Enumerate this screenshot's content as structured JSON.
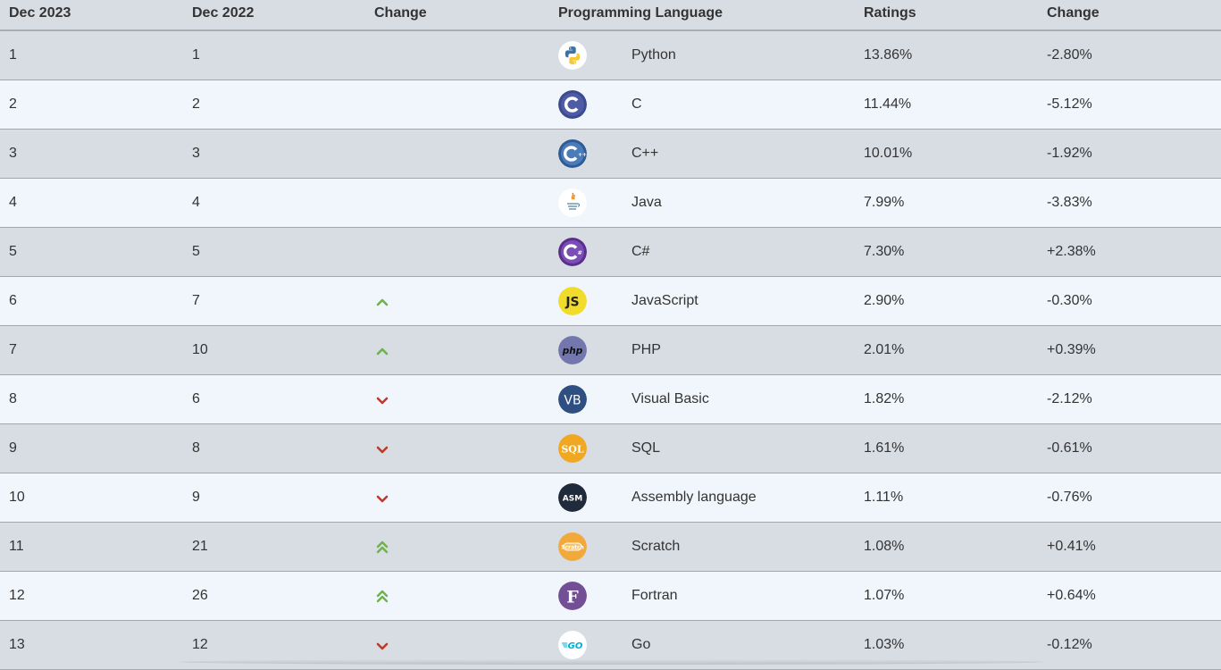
{
  "header": {
    "col1": "Dec 2023",
    "col2": "Dec 2022",
    "col3": "Change",
    "col4": "Programming Language",
    "col5": "Ratings",
    "col6": "Change"
  },
  "colors": {
    "up": "#6fb24a",
    "down": "#c0392b",
    "row_odd": "#d8dce3",
    "row_even": "#f0f6fb"
  },
  "rows": [
    {
      "rank_2023": "1",
      "rank_2022": "1",
      "trend": "none",
      "icon": "python-icon",
      "language": "Python",
      "rating": "13.86%",
      "change": "-2.80%"
    },
    {
      "rank_2023": "2",
      "rank_2022": "2",
      "trend": "none",
      "icon": "c-icon",
      "language": "C",
      "rating": "11.44%",
      "change": "-5.12%"
    },
    {
      "rank_2023": "3",
      "rank_2022": "3",
      "trend": "none",
      "icon": "cpp-icon",
      "language": "C++",
      "rating": "10.01%",
      "change": "-1.92%"
    },
    {
      "rank_2023": "4",
      "rank_2022": "4",
      "trend": "none",
      "icon": "java-icon",
      "language": "Java",
      "rating": "7.99%",
      "change": "-3.83%"
    },
    {
      "rank_2023": "5",
      "rank_2022": "5",
      "trend": "none",
      "icon": "csharp-icon",
      "language": "C#",
      "rating": "7.30%",
      "change": "+2.38%"
    },
    {
      "rank_2023": "6",
      "rank_2022": "7",
      "trend": "up",
      "icon": "javascript-icon",
      "language": "JavaScript",
      "rating": "2.90%",
      "change": "-0.30%"
    },
    {
      "rank_2023": "7",
      "rank_2022": "10",
      "trend": "up",
      "icon": "php-icon",
      "language": "PHP",
      "rating": "2.01%",
      "change": "+0.39%"
    },
    {
      "rank_2023": "8",
      "rank_2022": "6",
      "trend": "down",
      "icon": "visual-basic-icon",
      "language": "Visual Basic",
      "rating": "1.82%",
      "change": "-2.12%"
    },
    {
      "rank_2023": "9",
      "rank_2022": "8",
      "trend": "down",
      "icon": "sql-icon",
      "language": "SQL",
      "rating": "1.61%",
      "change": "-0.61%"
    },
    {
      "rank_2023": "10",
      "rank_2022": "9",
      "trend": "down",
      "icon": "assembly-icon",
      "language": "Assembly language",
      "rating": "1.11%",
      "change": "-0.76%"
    },
    {
      "rank_2023": "11",
      "rank_2022": "21",
      "trend": "double-up",
      "icon": "scratch-icon",
      "language": "Scratch",
      "rating": "1.08%",
      "change": "+0.41%"
    },
    {
      "rank_2023": "12",
      "rank_2022": "26",
      "trend": "double-up",
      "icon": "fortran-icon",
      "language": "Fortran",
      "rating": "1.07%",
      "change": "+0.64%"
    },
    {
      "rank_2023": "13",
      "rank_2022": "12",
      "trend": "down",
      "icon": "go-icon",
      "language": "Go",
      "rating": "1.03%",
      "change": "-0.12%"
    }
  ]
}
